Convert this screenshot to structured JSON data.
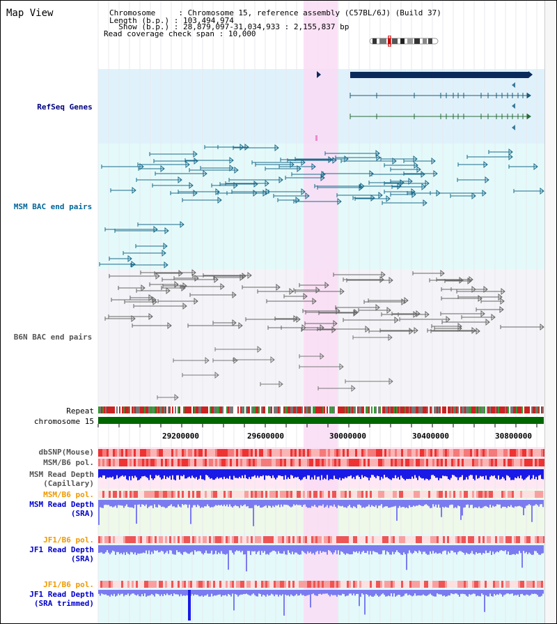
{
  "title": "Map View",
  "info": {
    "chromosome_key": "Chromosome     ",
    "chromosome_val": ": Chromosome 15, reference assembly (C57BL/6J) (Build 37)",
    "length_key": "Length (b.p.) ",
    "length_val": ": 103,494,974",
    "show_key": "  Show (b.p.) ",
    "show_val": ": 28,879,097-31,034,933 : 2,155,837 bp",
    "coverage_key": "Read coverage check span ",
    "coverage_val": ": 10,000"
  },
  "tracks": {
    "refseq": "RefSeq Genes",
    "msm_bac": "MSM BAC end pairs",
    "b6n_bac": "B6N BAC end pairs",
    "repeat": "Repeat",
    "chromosome": "chromosome 15",
    "dbsnp": "dbSNP(Mouse)",
    "msm_pol_1": "MSM/B6 pol.",
    "msm_depth_cap_1": "MSM Read Depth",
    "msm_depth_cap_2": "(Capillary)",
    "msm_pol_2": "MSM/B6 pol.",
    "msm_depth_sra_1": "MSM Read Depth",
    "msm_depth_sra_2": "(SRA)",
    "jf1_pol_1": "JF1/B6 pol.",
    "jf1_depth_sra_1": "JF1 Read Depth",
    "jf1_depth_sra_2": "(SRA)",
    "jf1_pol_2": "JF1/B6 pol.",
    "jf1_depth_trim_1": "JF1 Read Depth",
    "jf1_depth_trim_2": "(SRA trimmed)"
  },
  "axis": {
    "ticks": [
      "29200000",
      "29600000",
      "30000000",
      "30400000",
      "30800000"
    ]
  },
  "colors": {
    "refseq_label": "#000080",
    "msm_bac_label": "#006699",
    "b6n_label": "#555555",
    "orange_label": "#ee9900",
    "blue_label": "#0000cc",
    "highlight": "#fadcf5",
    "refseq_bg": "#dff2fb",
    "msm_bg": "#e4fafa",
    "b6n_bg": "#f4f4f8",
    "chrom_bar": "#006600",
    "depth_dark": "#1a1ae6",
    "depth_light": "#7b7bf0"
  }
}
